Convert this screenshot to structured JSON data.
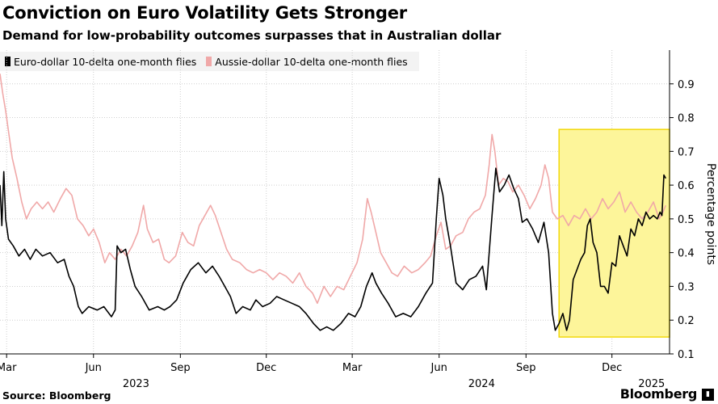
{
  "header": {
    "title": "Conviction on Euro Volatility Gets Stronger",
    "subtitle": "Demand for low-probability outcomes surpasses that in Australian dollar"
  },
  "footer": {
    "source": "Source: Bloomberg",
    "brand": "Bloomberg"
  },
  "colors": {
    "eur": "#000000",
    "aud": "#f0a8a8",
    "highlight_fill": "#fdf59a",
    "highlight_stroke": "#f2d80a",
    "grid": "#cfcfcf"
  },
  "chart_data": {
    "type": "line",
    "title": "Conviction on Euro Volatility Gets Stronger",
    "subtitle": "Demand for low-probability outcomes surpasses that in Australian dollar",
    "xlabel": "",
    "ylabel": "Percentage points",
    "ylim": [
      0.1,
      1.0
    ],
    "yticks": [
      0.1,
      0.2,
      0.3,
      0.4,
      0.5,
      0.6,
      0.7,
      0.8,
      0.9
    ],
    "xlim": [
      "2023-02-22",
      "2025-01-31"
    ],
    "xticks": [
      {
        "date": "2023-03-01",
        "label": "Mar"
      },
      {
        "date": "2023-06-01",
        "label": "Jun"
      },
      {
        "date": "2023-09-01",
        "label": "Sep"
      },
      {
        "date": "2023-12-01",
        "label": "Dec"
      },
      {
        "date": "2024-03-01",
        "label": "Mar"
      },
      {
        "date": "2024-06-01",
        "label": "Jun"
      },
      {
        "date": "2024-09-01",
        "label": "Sep"
      },
      {
        "date": "2024-12-01",
        "label": "Dec"
      }
    ],
    "year_labels": [
      {
        "date": "2023-07-16",
        "label": "2023"
      },
      {
        "date": "2024-07-16",
        "label": "2024"
      },
      {
        "date": "2025-01-12",
        "label": "2025"
      }
    ],
    "grid": true,
    "legend_position": "top-left",
    "highlight": {
      "x": [
        "2024-10-06",
        "2025-01-31"
      ],
      "y": [
        0.15,
        0.765
      ]
    },
    "series": [
      {
        "name": "Euro-dollar 10-delta one-month flies",
        "color": "#000000",
        "points": [
          [
            "2023-02-22",
            0.6
          ],
          [
            "2023-02-24",
            0.48
          ],
          [
            "2023-02-26",
            0.64
          ],
          [
            "2023-02-28",
            0.5
          ],
          [
            "2023-03-03",
            0.44
          ],
          [
            "2023-03-08",
            0.42
          ],
          [
            "2023-03-14",
            0.39
          ],
          [
            "2023-03-20",
            0.41
          ],
          [
            "2023-03-26",
            0.38
          ],
          [
            "2023-04-01",
            0.41
          ],
          [
            "2023-04-08",
            0.39
          ],
          [
            "2023-04-16",
            0.4
          ],
          [
            "2023-04-24",
            0.37
          ],
          [
            "2023-05-01",
            0.38
          ],
          [
            "2023-05-06",
            0.33
          ],
          [
            "2023-05-11",
            0.3
          ],
          [
            "2023-05-16",
            0.24
          ],
          [
            "2023-05-20",
            0.22
          ],
          [
            "2023-05-27",
            0.24
          ],
          [
            "2023-06-05",
            0.23
          ],
          [
            "2023-06-12",
            0.24
          ],
          [
            "2023-06-20",
            0.21
          ],
          [
            "2023-06-24",
            0.23
          ],
          [
            "2023-06-26",
            0.42
          ],
          [
            "2023-06-30",
            0.4
          ],
          [
            "2023-07-05",
            0.41
          ],
          [
            "2023-07-10",
            0.35
          ],
          [
            "2023-07-15",
            0.3
          ],
          [
            "2023-07-22",
            0.27
          ],
          [
            "2023-07-30",
            0.23
          ],
          [
            "2023-08-08",
            0.24
          ],
          [
            "2023-08-15",
            0.23
          ],
          [
            "2023-08-21",
            0.24
          ],
          [
            "2023-08-28",
            0.26
          ],
          [
            "2023-09-04",
            0.31
          ],
          [
            "2023-09-12",
            0.35
          ],
          [
            "2023-09-20",
            0.37
          ],
          [
            "2023-09-28",
            0.34
          ],
          [
            "2023-10-05",
            0.36
          ],
          [
            "2023-10-12",
            0.33
          ],
          [
            "2023-10-18",
            0.3
          ],
          [
            "2023-10-24",
            0.27
          ],
          [
            "2023-10-30",
            0.22
          ],
          [
            "2023-11-06",
            0.24
          ],
          [
            "2023-11-14",
            0.23
          ],
          [
            "2023-11-20",
            0.26
          ],
          [
            "2023-11-27",
            0.24
          ],
          [
            "2023-12-05",
            0.25
          ],
          [
            "2023-12-12",
            0.27
          ],
          [
            "2023-12-20",
            0.26
          ],
          [
            "2023-12-28",
            0.25
          ],
          [
            "2024-01-05",
            0.24
          ],
          [
            "2024-01-12",
            0.22
          ],
          [
            "2024-01-20",
            0.19
          ],
          [
            "2024-01-27",
            0.17
          ],
          [
            "2024-02-03",
            0.18
          ],
          [
            "2024-02-10",
            0.17
          ],
          [
            "2024-02-18",
            0.19
          ],
          [
            "2024-02-26",
            0.22
          ],
          [
            "2024-03-04",
            0.21
          ],
          [
            "2024-03-10",
            0.24
          ],
          [
            "2024-03-16",
            0.3
          ],
          [
            "2024-03-22",
            0.34
          ],
          [
            "2024-03-26",
            0.31
          ],
          [
            "2024-04-01",
            0.28
          ],
          [
            "2024-04-08",
            0.25
          ],
          [
            "2024-04-16",
            0.21
          ],
          [
            "2024-04-24",
            0.22
          ],
          [
            "2024-05-02",
            0.21
          ],
          [
            "2024-05-10",
            0.24
          ],
          [
            "2024-05-18",
            0.28
          ],
          [
            "2024-05-25",
            0.31
          ],
          [
            "2024-05-29",
            0.5
          ],
          [
            "2024-06-01",
            0.62
          ],
          [
            "2024-06-05",
            0.57
          ],
          [
            "2024-06-08",
            0.5
          ],
          [
            "2024-06-13",
            0.42
          ],
          [
            "2024-06-19",
            0.31
          ],
          [
            "2024-06-26",
            0.29
          ],
          [
            "2024-07-03",
            0.32
          ],
          [
            "2024-07-10",
            0.33
          ],
          [
            "2024-07-17",
            0.36
          ],
          [
            "2024-07-21",
            0.29
          ],
          [
            "2024-07-27",
            0.51
          ],
          [
            "2024-07-31",
            0.65
          ],
          [
            "2024-08-04",
            0.58
          ],
          [
            "2024-08-09",
            0.6
          ],
          [
            "2024-08-14",
            0.63
          ],
          [
            "2024-08-19",
            0.59
          ],
          [
            "2024-08-24",
            0.56
          ],
          [
            "2024-08-28",
            0.49
          ],
          [
            "2024-09-02",
            0.5
          ],
          [
            "2024-09-08",
            0.47
          ],
          [
            "2024-09-14",
            0.43
          ],
          [
            "2024-09-20",
            0.49
          ],
          [
            "2024-09-25",
            0.4
          ],
          [
            "2024-09-29",
            0.22
          ],
          [
            "2024-10-02",
            0.17
          ],
          [
            "2024-10-06",
            0.19
          ],
          [
            "2024-10-10",
            0.22
          ],
          [
            "2024-10-14",
            0.17
          ],
          [
            "2024-10-17",
            0.2
          ],
          [
            "2024-10-21",
            0.32
          ],
          [
            "2024-10-25",
            0.35
          ],
          [
            "2024-10-29",
            0.38
          ],
          [
            "2024-11-02",
            0.4
          ],
          [
            "2024-11-05",
            0.48
          ],
          [
            "2024-11-08",
            0.5
          ],
          [
            "2024-11-11",
            0.43
          ],
          [
            "2024-11-15",
            0.4
          ],
          [
            "2024-11-19",
            0.3
          ],
          [
            "2024-11-23",
            0.3
          ],
          [
            "2024-11-27",
            0.28
          ],
          [
            "2024-12-01",
            0.37
          ],
          [
            "2024-12-05",
            0.36
          ],
          [
            "2024-12-09",
            0.45
          ],
          [
            "2024-12-13",
            0.42
          ],
          [
            "2024-12-17",
            0.39
          ],
          [
            "2024-12-21",
            0.47
          ],
          [
            "2024-12-25",
            0.45
          ],
          [
            "2024-12-29",
            0.5
          ],
          [
            "2025-01-02",
            0.48
          ],
          [
            "2025-01-06",
            0.52
          ],
          [
            "2025-01-10",
            0.5
          ],
          [
            "2025-01-14",
            0.51
          ],
          [
            "2025-01-18",
            0.5
          ],
          [
            "2025-01-21",
            0.52
          ],
          [
            "2025-01-23",
            0.51
          ],
          [
            "2025-01-25",
            0.63
          ],
          [
            "2025-01-27",
            0.62
          ]
        ]
      },
      {
        "name": "Aussie-dollar 10-delta one-month flies",
        "color": "#f0a8a8",
        "points": [
          [
            "2023-02-22",
            0.93
          ],
          [
            "2023-02-25",
            0.87
          ],
          [
            "2023-02-28",
            0.82
          ],
          [
            "2023-03-03",
            0.76
          ],
          [
            "2023-03-07",
            0.68
          ],
          [
            "2023-03-12",
            0.62
          ],
          [
            "2023-03-17",
            0.55
          ],
          [
            "2023-03-22",
            0.5
          ],
          [
            "2023-03-27",
            0.53
          ],
          [
            "2023-04-02",
            0.55
          ],
          [
            "2023-04-08",
            0.53
          ],
          [
            "2023-04-14",
            0.55
          ],
          [
            "2023-04-20",
            0.52
          ],
          [
            "2023-04-27",
            0.56
          ],
          [
            "2023-05-03",
            0.59
          ],
          [
            "2023-05-09",
            0.57
          ],
          [
            "2023-05-15",
            0.5
          ],
          [
            "2023-05-21",
            0.48
          ],
          [
            "2023-05-27",
            0.45
          ],
          [
            "2023-06-01",
            0.47
          ],
          [
            "2023-06-07",
            0.43
          ],
          [
            "2023-06-13",
            0.37
          ],
          [
            "2023-06-18",
            0.4
          ],
          [
            "2023-06-24",
            0.38
          ],
          [
            "2023-06-30",
            0.41
          ],
          [
            "2023-07-06",
            0.39
          ],
          [
            "2023-07-12",
            0.42
          ],
          [
            "2023-07-18",
            0.46
          ],
          [
            "2023-07-24",
            0.54
          ],
          [
            "2023-07-28",
            0.47
          ],
          [
            "2023-08-03",
            0.43
          ],
          [
            "2023-08-09",
            0.44
          ],
          [
            "2023-08-15",
            0.38
          ],
          [
            "2023-08-20",
            0.37
          ],
          [
            "2023-08-27",
            0.39
          ],
          [
            "2023-09-03",
            0.46
          ],
          [
            "2023-09-09",
            0.43
          ],
          [
            "2023-09-15",
            0.42
          ],
          [
            "2023-09-21",
            0.48
          ],
          [
            "2023-09-27",
            0.51
          ],
          [
            "2023-10-03",
            0.54
          ],
          [
            "2023-10-08",
            0.51
          ],
          [
            "2023-10-14",
            0.46
          ],
          [
            "2023-10-20",
            0.41
          ],
          [
            "2023-10-26",
            0.38
          ],
          [
            "2023-11-03",
            0.37
          ],
          [
            "2023-11-10",
            0.35
          ],
          [
            "2023-11-17",
            0.34
          ],
          [
            "2023-11-24",
            0.35
          ],
          [
            "2023-12-01",
            0.34
          ],
          [
            "2023-12-08",
            0.32
          ],
          [
            "2023-12-15",
            0.34
          ],
          [
            "2023-12-22",
            0.33
          ],
          [
            "2023-12-29",
            0.31
          ],
          [
            "2024-01-05",
            0.34
          ],
          [
            "2024-01-12",
            0.3
          ],
          [
            "2024-01-19",
            0.28
          ],
          [
            "2024-01-24",
            0.25
          ],
          [
            "2024-01-31",
            0.3
          ],
          [
            "2024-02-07",
            0.27
          ],
          [
            "2024-02-14",
            0.3
          ],
          [
            "2024-02-21",
            0.29
          ],
          [
            "2024-02-28",
            0.33
          ],
          [
            "2024-03-06",
            0.37
          ],
          [
            "2024-03-12",
            0.44
          ],
          [
            "2024-03-17",
            0.56
          ],
          [
            "2024-03-21",
            0.52
          ],
          [
            "2024-03-26",
            0.46
          ],
          [
            "2024-03-31",
            0.4
          ],
          [
            "2024-04-06",
            0.37
          ],
          [
            "2024-04-12",
            0.34
          ],
          [
            "2024-04-18",
            0.33
          ],
          [
            "2024-04-25",
            0.36
          ],
          [
            "2024-05-03",
            0.34
          ],
          [
            "2024-05-10",
            0.35
          ],
          [
            "2024-05-17",
            0.37
          ],
          [
            "2024-05-23",
            0.39
          ],
          [
            "2024-05-29",
            0.45
          ],
          [
            "2024-06-03",
            0.49
          ],
          [
            "2024-06-08",
            0.41
          ],
          [
            "2024-06-13",
            0.42
          ],
          [
            "2024-06-19",
            0.45
          ],
          [
            "2024-06-26",
            0.46
          ],
          [
            "2024-07-02",
            0.5
          ],
          [
            "2024-07-08",
            0.52
          ],
          [
            "2024-07-14",
            0.53
          ],
          [
            "2024-07-20",
            0.57
          ],
          [
            "2024-07-24",
            0.66
          ],
          [
            "2024-07-27",
            0.75
          ],
          [
            "2024-07-30",
            0.7
          ],
          [
            "2024-08-03",
            0.6
          ],
          [
            "2024-08-08",
            0.62
          ],
          [
            "2024-08-13",
            0.61
          ],
          [
            "2024-08-18",
            0.58
          ],
          [
            "2024-08-24",
            0.6
          ],
          [
            "2024-08-30",
            0.57
          ],
          [
            "2024-09-05",
            0.53
          ],
          [
            "2024-09-11",
            0.56
          ],
          [
            "2024-09-17",
            0.6
          ],
          [
            "2024-09-21",
            0.66
          ],
          [
            "2024-09-25",
            0.62
          ],
          [
            "2024-09-29",
            0.52
          ],
          [
            "2024-10-04",
            0.5
          ],
          [
            "2024-10-10",
            0.51
          ],
          [
            "2024-10-16",
            0.48
          ],
          [
            "2024-10-22",
            0.51
          ],
          [
            "2024-10-28",
            0.5
          ],
          [
            "2024-11-03",
            0.53
          ],
          [
            "2024-11-09",
            0.5
          ],
          [
            "2024-11-15",
            0.52
          ],
          [
            "2024-11-21",
            0.56
          ],
          [
            "2024-11-27",
            0.53
          ],
          [
            "2024-12-03",
            0.55
          ],
          [
            "2024-12-09",
            0.58
          ],
          [
            "2024-12-15",
            0.52
          ],
          [
            "2024-12-21",
            0.55
          ],
          [
            "2024-12-27",
            0.52
          ],
          [
            "2025-01-02",
            0.5
          ],
          [
            "2025-01-08",
            0.52
          ],
          [
            "2025-01-14",
            0.55
          ],
          [
            "2025-01-20",
            0.5
          ],
          [
            "2025-01-24",
            0.52
          ],
          [
            "2025-01-27",
            0.54
          ]
        ]
      }
    ]
  }
}
